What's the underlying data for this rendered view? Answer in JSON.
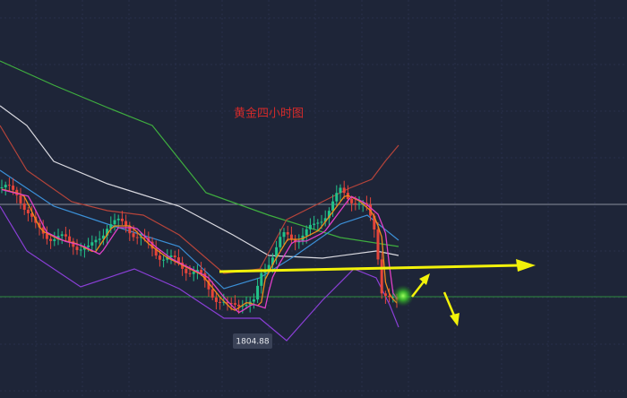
{
  "chart_data": {
    "type": "candlestick",
    "title": "黄金四小时图",
    "annotations": [
      {
        "text": "1804.88"
      }
    ]
  }
}
